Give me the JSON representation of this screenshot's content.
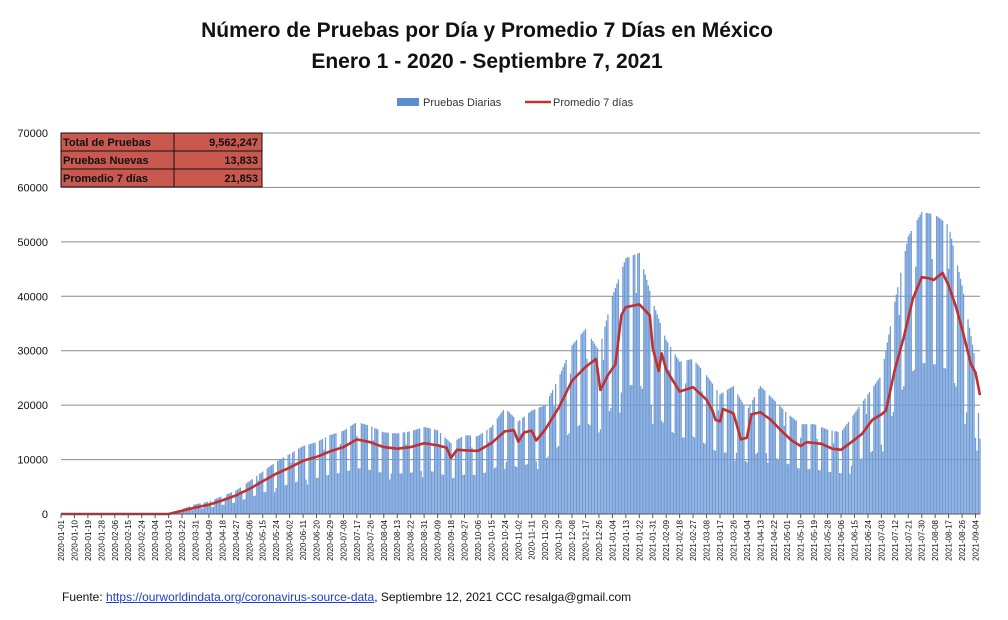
{
  "header": {
    "title_line1": "Número de Pruebas por Día  y Promedio 7 Días en México",
    "title_line2": "Enero 1 - 2020 - Septiembre 7, 2021"
  },
  "legend": {
    "bars_label": "Pruebas Diarias",
    "line_label": "Promedio 7 días",
    "bar_color": "#5b8ccf",
    "line_color": "#c0312f"
  },
  "stats": [
    {
      "label": "Total de Pruebas",
      "value": "9,562,247"
    },
    {
      "label": "Pruebas Nuevas",
      "value": "13,833"
    },
    {
      "label": "Promedio 7 días",
      "value": "21,853"
    }
  ],
  "footer": {
    "prefix": "Fuente:",
    "link_text": "https://ourworldindata.org/coronavirus-source-data",
    "suffix": ",   Septiembre 12, 2021   CCC   resalga@gmail.com"
  },
  "chart_data": {
    "type": "bar+line",
    "ylim": [
      0,
      70000
    ],
    "yticks": [
      "0",
      "10000",
      "20000",
      "30000",
      "40000",
      "50000",
      "60000",
      "70000"
    ],
    "grid": true,
    "legend_position": "top-center",
    "x_tick_labels": [
      "2020-01-01",
      "2020-01-10",
      "2020-01-19",
      "2020-01-28",
      "2020-02-06",
      "2020-02-15",
      "2020-02-24",
      "2020-03-04",
      "2020-03-13",
      "2020-03-22",
      "2020-03-31",
      "2020-04-09",
      "2020-04-18",
      "2020-04-27",
      "2020-05-06",
      "2020-05-15",
      "2020-05-24",
      "2020-06-02",
      "2020-06-11",
      "2020-06-20",
      "2020-06-29",
      "2020-07-08",
      "2020-07-17",
      "2020-07-26",
      "2020-08-04",
      "2020-08-13",
      "2020-08-22",
      "2020-08-31",
      "2020-09-09",
      "2020-09-18",
      "2020-09-27",
      "2020-10-06",
      "2020-10-15",
      "2020-10-24",
      "2020-11-02",
      "2020-11-11",
      "2020-11-20",
      "2020-11-29",
      "2020-12-08",
      "2020-12-17",
      "2020-12-26",
      "2021-01-04",
      "2021-01-13",
      "2021-01-22",
      "2021-01-31",
      "2021-02-09",
      "2021-02-18",
      "2021-02-27",
      "2021-03-08",
      "2021-03-17",
      "2021-03-26",
      "2021-04-04",
      "2021-04-13",
      "2021-04-22",
      "2021-05-01",
      "2021-05-10",
      "2021-05-19",
      "2021-05-28",
      "2021-06-06",
      "2021-06-15",
      "2021-06-24",
      "2021-07-03",
      "2021-07-12",
      "2021-07-21",
      "2021-07-30",
      "2021-08-08",
      "2021-08-17",
      "2021-08-26",
      "2021-09-04"
    ],
    "series": [
      {
        "name": "Promedio 7 días",
        "kind": "line",
        "points": [
          [
            "2020-01-01",
            0
          ],
          [
            "2020-03-13",
            0
          ],
          [
            "2020-03-22",
            600
          ],
          [
            "2020-03-31",
            1200
          ],
          [
            "2020-04-09",
            1700
          ],
          [
            "2020-04-18",
            2500
          ],
          [
            "2020-04-27",
            3400
          ],
          [
            "2020-05-06",
            4600
          ],
          [
            "2020-05-15",
            6000
          ],
          [
            "2020-05-24",
            7400
          ],
          [
            "2020-06-02",
            8500
          ],
          [
            "2020-06-11",
            9800
          ],
          [
            "2020-06-20",
            10500
          ],
          [
            "2020-06-29",
            11500
          ],
          [
            "2020-07-08",
            12300
          ],
          [
            "2020-07-17",
            13700
          ],
          [
            "2020-07-26",
            13200
          ],
          [
            "2020-08-04",
            12300
          ],
          [
            "2020-08-13",
            12000
          ],
          [
            "2020-08-22",
            12300
          ],
          [
            "2020-08-31",
            13000
          ],
          [
            "2020-09-09",
            12600
          ],
          [
            "2020-09-15",
            12200
          ],
          [
            "2020-09-18",
            10300
          ],
          [
            "2020-09-22",
            11800
          ],
          [
            "2020-09-27",
            11700
          ],
          [
            "2020-10-06",
            11600
          ],
          [
            "2020-10-15",
            13000
          ],
          [
            "2020-10-24",
            15200
          ],
          [
            "2020-10-30",
            15400
          ],
          [
            "2020-11-02",
            13300
          ],
          [
            "2020-11-06",
            15000
          ],
          [
            "2020-11-11",
            15300
          ],
          [
            "2020-11-14",
            13500
          ],
          [
            "2020-11-20",
            15500
          ],
          [
            "2020-11-29",
            19500
          ],
          [
            "2020-12-08",
            24500
          ],
          [
            "2020-12-17",
            27000
          ],
          [
            "2020-12-24",
            28500
          ],
          [
            "2020-12-27",
            22800
          ],
          [
            "2021-01-01",
            25500
          ],
          [
            "2021-01-06",
            27500
          ],
          [
            "2021-01-10",
            36500
          ],
          [
            "2021-01-13",
            38000
          ],
          [
            "2021-01-22",
            38500
          ],
          [
            "2021-01-29",
            36500
          ],
          [
            "2021-01-31",
            30500
          ],
          [
            "2021-02-04",
            26300
          ],
          [
            "2021-02-06",
            29500
          ],
          [
            "2021-02-09",
            26500
          ],
          [
            "2021-02-18",
            22500
          ],
          [
            "2021-02-27",
            23300
          ],
          [
            "2021-03-08",
            21000
          ],
          [
            "2021-03-12",
            19000
          ],
          [
            "2021-03-14",
            17300
          ],
          [
            "2021-03-17",
            17000
          ],
          [
            "2021-03-19",
            19300
          ],
          [
            "2021-03-26",
            18500
          ],
          [
            "2021-03-31",
            13700
          ],
          [
            "2021-04-04",
            14000
          ],
          [
            "2021-04-07",
            18300
          ],
          [
            "2021-04-13",
            18700
          ],
          [
            "2021-04-20",
            17300
          ],
          [
            "2021-04-27",
            15300
          ],
          [
            "2021-05-04",
            13500
          ],
          [
            "2021-05-10",
            12500
          ],
          [
            "2021-05-14",
            13200
          ],
          [
            "2021-05-24",
            12900
          ],
          [
            "2021-05-31",
            12000
          ],
          [
            "2021-06-06",
            11800
          ],
          [
            "2021-06-12",
            13000
          ],
          [
            "2021-06-20",
            14700
          ],
          [
            "2021-06-27",
            17300
          ],
          [
            "2021-07-03",
            18300
          ],
          [
            "2021-07-06",
            19000
          ],
          [
            "2021-07-12",
            26500
          ],
          [
            "2021-07-18",
            32500
          ],
          [
            "2021-07-24",
            39500
          ],
          [
            "2021-07-30",
            43500
          ],
          [
            "2021-08-04",
            43300
          ],
          [
            "2021-08-07",
            43000
          ],
          [
            "2021-08-13",
            44300
          ],
          [
            "2021-08-17",
            42000
          ],
          [
            "2021-08-22",
            38000
          ],
          [
            "2021-08-26",
            34000
          ],
          [
            "2021-09-01",
            27500
          ],
          [
            "2021-09-04",
            26000
          ],
          [
            "2021-09-07",
            21853
          ]
        ]
      },
      {
        "name": "Pruebas Diarias",
        "kind": "bar",
        "daily_series_anchor_points": [
          [
            "2020-01-01",
            0
          ],
          [
            "2020-03-13",
            200
          ],
          [
            "2020-03-22",
            900
          ],
          [
            "2020-03-31",
            1800
          ],
          [
            "2020-04-09",
            2300
          ],
          [
            "2020-04-18",
            3300
          ],
          [
            "2020-04-27",
            4300
          ],
          [
            "2020-05-06",
            6000
          ],
          [
            "2020-05-15",
            7800
          ],
          [
            "2020-05-24",
            9600
          ],
          [
            "2020-06-02",
            11000
          ],
          [
            "2020-06-11",
            12500
          ],
          [
            "2020-06-20",
            13200
          ],
          [
            "2020-06-29",
            14500
          ],
          [
            "2020-07-08",
            15300
          ],
          [
            "2020-07-17",
            16900
          ],
          [
            "2020-07-26",
            16200
          ],
          [
            "2020-08-04",
            15000
          ],
          [
            "2020-08-13",
            14800
          ],
          [
            "2020-08-22",
            15200
          ],
          [
            "2020-08-31",
            16000
          ],
          [
            "2020-09-09",
            15400
          ],
          [
            "2020-09-18",
            13000
          ],
          [
            "2020-09-27",
            14500
          ],
          [
            "2020-10-06",
            14300
          ],
          [
            "2020-10-15",
            16000
          ],
          [
            "2020-10-24",
            19500
          ],
          [
            "2020-11-02",
            17000
          ],
          [
            "2020-11-11",
            19000
          ],
          [
            "2020-11-20",
            20000
          ],
          [
            "2020-11-29",
            25000
          ],
          [
            "2020-12-08",
            31000
          ],
          [
            "2020-12-17",
            34000
          ],
          [
            "2020-12-26",
            30000
          ],
          [
            "2021-01-04",
            40000
          ],
          [
            "2021-01-13",
            47000
          ],
          [
            "2021-01-22",
            48000
          ],
          [
            "2021-01-31",
            39000
          ],
          [
            "2021-02-09",
            32000
          ],
          [
            "2021-02-18",
            28000
          ],
          [
            "2021-02-27",
            28500
          ],
          [
            "2021-03-08",
            25500
          ],
          [
            "2021-03-17",
            22000
          ],
          [
            "2021-03-26",
            23500
          ],
          [
            "2021-04-04",
            19000
          ],
          [
            "2021-04-13",
            23500
          ],
          [
            "2021-04-22",
            21000
          ],
          [
            "2021-05-01",
            18500
          ],
          [
            "2021-05-10",
            16500
          ],
          [
            "2021-05-19",
            16500
          ],
          [
            "2021-05-28",
            15500
          ],
          [
            "2021-06-06",
            15000
          ],
          [
            "2021-06-15",
            18500
          ],
          [
            "2021-06-24",
            22000
          ],
          [
            "2021-07-03",
            25500
          ],
          [
            "2021-07-12",
            39000
          ],
          [
            "2021-07-21",
            51000
          ],
          [
            "2021-07-30",
            55500
          ],
          [
            "2021-08-08",
            55000
          ],
          [
            "2021-08-17",
            53000
          ],
          [
            "2021-08-26",
            42000
          ],
          [
            "2021-09-04",
            28000
          ],
          [
            "2021-09-07",
            13833
          ]
        ]
      }
    ]
  }
}
